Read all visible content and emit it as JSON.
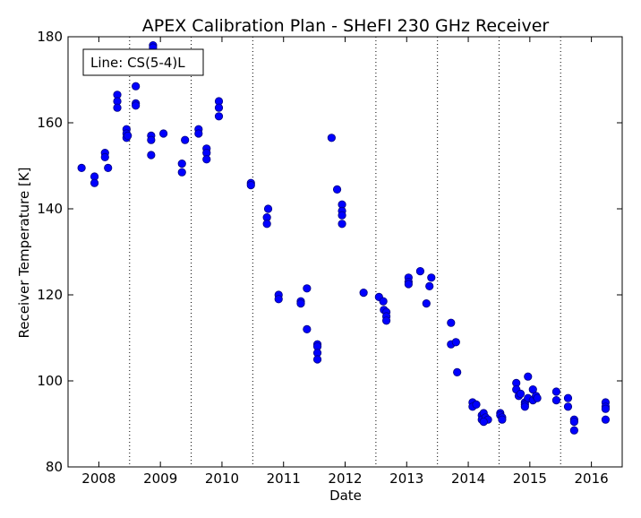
{
  "chart_data": {
    "type": "scatter",
    "title": "APEX Calibration Plan - SHeFI 230 GHz Receiver",
    "xlabel": "Date",
    "ylabel": "Receiver Temperature [K]",
    "xlim": [
      2007.5,
      2016.5
    ],
    "ylim": [
      80,
      180
    ],
    "x_ticks": [
      2008,
      2009,
      2010,
      2011,
      2012,
      2013,
      2014,
      2015,
      2016
    ],
    "y_ticks": [
      80,
      100,
      120,
      140,
      160,
      180
    ],
    "vertical_dotted_lines": [
      2008.5,
      2009.5,
      2010.5,
      2012.5,
      2013.5,
      2014.5,
      2015.5
    ],
    "annotation": "Line: CS(5-4)L",
    "marker_color": "#0000ff",
    "marker_edge": "#000080",
    "points": [
      [
        2007.72,
        149.5
      ],
      [
        2007.93,
        147.5
      ],
      [
        2007.93,
        146.0
      ],
      [
        2008.1,
        153.0
      ],
      [
        2008.1,
        152.0
      ],
      [
        2008.15,
        149.5
      ],
      [
        2008.3,
        166.5
      ],
      [
        2008.3,
        165.0
      ],
      [
        2008.3,
        163.5
      ],
      [
        2008.45,
        158.5
      ],
      [
        2008.45,
        157.5
      ],
      [
        2008.45,
        156.5
      ],
      [
        2008.47,
        157.0
      ],
      [
        2008.6,
        168.5
      ],
      [
        2008.6,
        164.5
      ],
      [
        2008.6,
        164.0
      ],
      [
        2008.88,
        178.0
      ],
      [
        2008.88,
        177.5
      ],
      [
        2008.85,
        157.0
      ],
      [
        2008.85,
        156.0
      ],
      [
        2008.85,
        152.5
      ],
      [
        2009.05,
        157.5
      ],
      [
        2009.35,
        150.5
      ],
      [
        2009.35,
        148.5
      ],
      [
        2009.4,
        156.0
      ],
      [
        2009.62,
        158.5
      ],
      [
        2009.62,
        157.5
      ],
      [
        2009.75,
        154.0
      ],
      [
        2009.75,
        153.0
      ],
      [
        2009.75,
        151.5
      ],
      [
        2009.95,
        165.0
      ],
      [
        2009.95,
        163.5
      ],
      [
        2009.95,
        161.5
      ],
      [
        2010.47,
        146.0
      ],
      [
        2010.47,
        145.5
      ],
      [
        2010.75,
        140.0
      ],
      [
        2010.73,
        138.0
      ],
      [
        2010.73,
        136.5
      ],
      [
        2010.92,
        120.0
      ],
      [
        2010.92,
        119.0
      ],
      [
        2011.28,
        118.5
      ],
      [
        2011.28,
        118.0
      ],
      [
        2011.38,
        121.5
      ],
      [
        2011.38,
        112.0
      ],
      [
        2011.55,
        108.5
      ],
      [
        2011.55,
        108.0
      ],
      [
        2011.55,
        106.5
      ],
      [
        2011.55,
        105.0
      ],
      [
        2011.78,
        156.5
      ],
      [
        2011.87,
        144.5
      ],
      [
        2011.95,
        141.0
      ],
      [
        2011.95,
        139.5
      ],
      [
        2011.95,
        138.5
      ],
      [
        2011.95,
        136.5
      ],
      [
        2012.3,
        120.5
      ],
      [
        2012.55,
        119.5
      ],
      [
        2012.62,
        118.5
      ],
      [
        2012.63,
        116.5
      ],
      [
        2012.67,
        116.0
      ],
      [
        2012.67,
        115.0
      ],
      [
        2012.67,
        114.0
      ],
      [
        2013.03,
        124.0
      ],
      [
        2013.03,
        123.0
      ],
      [
        2013.03,
        122.5
      ],
      [
        2013.22,
        125.5
      ],
      [
        2013.32,
        118.0
      ],
      [
        2013.37,
        122.0
      ],
      [
        2013.4,
        124.0
      ],
      [
        2013.72,
        113.5
      ],
      [
        2013.72,
        108.5
      ],
      [
        2013.8,
        109.0
      ],
      [
        2013.82,
        102.0
      ],
      [
        2014.07,
        95.0
      ],
      [
        2014.07,
        94.0
      ],
      [
        2014.13,
        94.5
      ],
      [
        2014.22,
        92.0
      ],
      [
        2014.22,
        91.0
      ],
      [
        2014.25,
        92.5
      ],
      [
        2014.28,
        91.5
      ],
      [
        2014.32,
        91.0
      ],
      [
        2014.25,
        90.5
      ],
      [
        2014.52,
        92.5
      ],
      [
        2014.52,
        92.0
      ],
      [
        2014.55,
        91.5
      ],
      [
        2014.55,
        91.0
      ],
      [
        2014.78,
        99.5
      ],
      [
        2014.78,
        98.0
      ],
      [
        2014.82,
        96.5
      ],
      [
        2014.85,
        97.0
      ],
      [
        2014.92,
        95.0
      ],
      [
        2014.92,
        94.5
      ],
      [
        2014.92,
        94.0
      ],
      [
        2014.97,
        101.0
      ],
      [
        2014.97,
        96.0
      ],
      [
        2015.05,
        98.0
      ],
      [
        2015.05,
        95.5
      ],
      [
        2015.1,
        96.5
      ],
      [
        2015.12,
        96.0
      ],
      [
        2015.43,
        97.5
      ],
      [
        2015.43,
        95.5
      ],
      [
        2015.62,
        96.0
      ],
      [
        2015.62,
        94.0
      ],
      [
        2015.72,
        91.0
      ],
      [
        2015.72,
        90.5
      ],
      [
        2015.72,
        88.5
      ],
      [
        2016.23,
        95.0
      ],
      [
        2016.23,
        94.0
      ],
      [
        2016.23,
        93.5
      ],
      [
        2016.23,
        91.0
      ]
    ]
  }
}
